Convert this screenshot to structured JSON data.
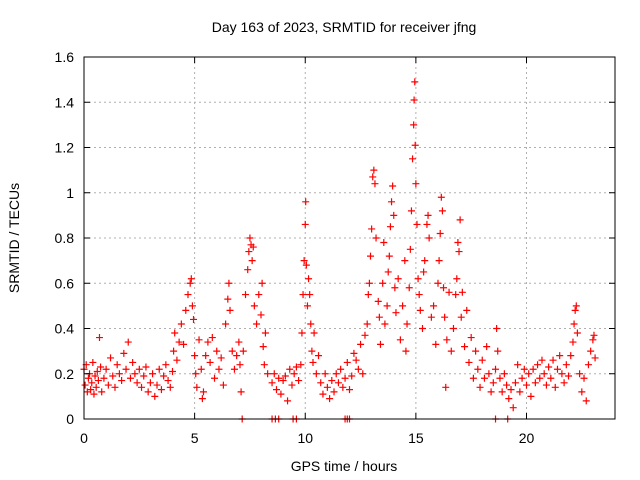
{
  "chart_data": {
    "type": "scatter",
    "title": "Day 163 of 2023, SRMTID for receiver jfng",
    "xlabel": "GPS time / hours",
    "ylabel": "SRMTID / TECUs",
    "xlim": [
      0,
      24
    ],
    "ylim": [
      0,
      1.6
    ],
    "xticks": [
      0,
      5,
      10,
      15,
      20
    ],
    "xtick_labels": [
      "0",
      "5",
      "10",
      "15",
      "20"
    ],
    "yticks": [
      0,
      0.2,
      0.4,
      0.6,
      0.8,
      1,
      1.2,
      1.4,
      1.6
    ],
    "ytick_labels": [
      "0",
      "0.2",
      "0.4",
      "0.6",
      "0.8",
      "1",
      "1.2",
      "1.4",
      "1.6"
    ],
    "grid": true,
    "marker": "+",
    "color": "#ff0000",
    "series": [
      {
        "name": "SRMTID",
        "points": [
          [
            0.0,
            0.22
          ],
          [
            0.05,
            0.15
          ],
          [
            0.1,
            0.24
          ],
          [
            0.15,
            0.12
          ],
          [
            0.2,
            0.18
          ],
          [
            0.25,
            0.2
          ],
          [
            0.3,
            0.13
          ],
          [
            0.35,
            0.16
          ],
          [
            0.4,
            0.25
          ],
          [
            0.45,
            0.11
          ],
          [
            0.5,
            0.19
          ],
          [
            0.55,
            0.14
          ],
          [
            0.6,
            0.21
          ],
          [
            0.65,
            0.17
          ],
          [
            0.7,
            0.36
          ],
          [
            0.75,
            0.23
          ],
          [
            0.8,
            0.12
          ],
          [
            0.9,
            0.18
          ],
          [
            1.0,
            0.22
          ],
          [
            1.1,
            0.15
          ],
          [
            1.2,
            0.27
          ],
          [
            1.3,
            0.19
          ],
          [
            1.4,
            0.14
          ],
          [
            1.5,
            0.24
          ],
          [
            1.6,
            0.2
          ],
          [
            1.7,
            0.17
          ],
          [
            1.8,
            0.29
          ],
          [
            1.9,
            0.22
          ],
          [
            2.0,
            0.34
          ],
          [
            2.1,
            0.18
          ],
          [
            2.2,
            0.25
          ],
          [
            2.3,
            0.2
          ],
          [
            2.4,
            0.16
          ],
          [
            2.5,
            0.22
          ],
          [
            2.6,
            0.14
          ],
          [
            2.7,
            0.19
          ],
          [
            2.8,
            0.23
          ],
          [
            2.9,
            0.12
          ],
          [
            3.0,
            0.16
          ],
          [
            3.1,
            0.2
          ],
          [
            3.2,
            0.1
          ],
          [
            3.3,
            0.15
          ],
          [
            3.4,
            0.22
          ],
          [
            3.5,
            0.13
          ],
          [
            3.6,
            0.19
          ],
          [
            3.7,
            0.24
          ],
          [
            3.8,
            0.17
          ],
          [
            3.9,
            0.14
          ],
          [
            4.0,
            0.21
          ],
          [
            4.05,
            0.3
          ],
          [
            4.1,
            0.38
          ],
          [
            4.2,
            0.26
          ],
          [
            4.3,
            0.34
          ],
          [
            4.4,
            0.42
          ],
          [
            4.5,
            0.33
          ],
          [
            4.6,
            0.48
          ],
          [
            4.7,
            0.55
          ],
          [
            4.8,
            0.6
          ],
          [
            4.85,
            0.62
          ],
          [
            4.9,
            0.5
          ],
          [
            4.95,
            0.44
          ],
          [
            5.0,
            0.28
          ],
          [
            5.05,
            0.2
          ],
          [
            5.1,
            0.14
          ],
          [
            5.2,
            0.35
          ],
          [
            5.3,
            0.22
          ],
          [
            5.35,
            0.09
          ],
          [
            5.4,
            0.12
          ],
          [
            5.5,
            0.28
          ],
          [
            5.6,
            0.34
          ],
          [
            5.7,
            0.25
          ],
          [
            5.8,
            0.36
          ],
          [
            5.9,
            0.18
          ],
          [
            6.0,
            0.3
          ],
          [
            6.1,
            0.22
          ],
          [
            6.2,
            0.27
          ],
          [
            6.3,
            0.15
          ],
          [
            6.4,
            0.42
          ],
          [
            6.5,
            0.53
          ],
          [
            6.55,
            0.6
          ],
          [
            6.6,
            0.48
          ],
          [
            6.7,
            0.3
          ],
          [
            6.8,
            0.22
          ],
          [
            6.9,
            0.28
          ],
          [
            7.0,
            0.34
          ],
          [
            7.05,
            0.24
          ],
          [
            7.1,
            0.12
          ],
          [
            7.2,
            0.3
          ],
          [
            7.3,
            0.55
          ],
          [
            7.4,
            0.66
          ],
          [
            7.45,
            0.74
          ],
          [
            7.5,
            0.8
          ],
          [
            7.55,
            0.77
          ],
          [
            7.6,
            0.7
          ],
          [
            7.65,
            0.76
          ],
          [
            7.7,
            0.5
          ],
          [
            7.8,
            0.42
          ],
          [
            7.9,
            0.55
          ],
          [
            8.0,
            0.46
          ],
          [
            8.05,
            0.6
          ],
          [
            8.1,
            0.32
          ],
          [
            8.15,
            0.24
          ],
          [
            8.2,
            0.38
          ],
          [
            8.3,
            0.2
          ],
          [
            8.5,
            0.16
          ],
          [
            8.6,
            0.2
          ],
          [
            8.7,
            0.13
          ],
          [
            8.8,
            0.18
          ],
          [
            8.9,
            0.11
          ],
          [
            9.0,
            0.17
          ],
          [
            9.1,
            0.19
          ],
          [
            9.2,
            0.08
          ],
          [
            9.3,
            0.22
          ],
          [
            9.4,
            0.15
          ],
          [
            9.5,
            0.2
          ],
          [
            9.6,
            0.23
          ],
          [
            9.7,
            0.17
          ],
          [
            9.8,
            0.24
          ],
          [
            9.85,
            0.38
          ],
          [
            9.9,
            0.55
          ],
          [
            9.95,
            0.7
          ],
          [
            10.0,
            0.86
          ],
          [
            10.02,
            0.96
          ],
          [
            10.05,
            0.68
          ],
          [
            10.1,
            0.5
          ],
          [
            10.15,
            0.62
          ],
          [
            10.2,
            0.55
          ],
          [
            10.25,
            0.42
          ],
          [
            10.3,
            0.3
          ],
          [
            10.35,
            0.25
          ],
          [
            10.4,
            0.38
          ],
          [
            10.5,
            0.2
          ],
          [
            10.6,
            0.28
          ],
          [
            10.7,
            0.16
          ],
          [
            10.8,
            0.11
          ],
          [
            10.9,
            0.2
          ],
          [
            11.0,
            0.14
          ],
          [
            11.1,
            0.09
          ],
          [
            11.2,
            0.17
          ],
          [
            11.3,
            0.12
          ],
          [
            11.4,
            0.2
          ],
          [
            11.5,
            0.16
          ],
          [
            11.6,
            0.22
          ],
          [
            11.7,
            0.14
          ],
          [
            11.8,
            0.18
          ],
          [
            11.9,
            0.25
          ],
          [
            12.0,
            0.13
          ],
          [
            12.1,
            0.19
          ],
          [
            12.2,
            0.29
          ],
          [
            12.3,
            0.26
          ],
          [
            12.4,
            0.22
          ],
          [
            12.5,
            0.33
          ],
          [
            12.6,
            0.2
          ],
          [
            12.7,
            0.37
          ],
          [
            12.8,
            0.42
          ],
          [
            12.85,
            0.55
          ],
          [
            12.9,
            0.6
          ],
          [
            12.95,
            0.72
          ],
          [
            13.0,
            0.84
          ],
          [
            13.05,
            1.07
          ],
          [
            13.1,
            1.1
          ],
          [
            13.15,
            1.04
          ],
          [
            13.2,
            0.8
          ],
          [
            13.3,
            0.52
          ],
          [
            13.35,
            0.45
          ],
          [
            13.4,
            0.33
          ],
          [
            13.5,
            0.6
          ],
          [
            13.55,
            0.78
          ],
          [
            13.6,
            0.42
          ],
          [
            13.7,
            0.5
          ],
          [
            13.75,
            0.65
          ],
          [
            13.8,
            0.72
          ],
          [
            13.85,
            0.85
          ],
          [
            13.9,
            0.96
          ],
          [
            13.95,
            1.03
          ],
          [
            14.0,
            0.9
          ],
          [
            14.05,
            0.58
          ],
          [
            14.1,
            0.47
          ],
          [
            14.2,
            0.62
          ],
          [
            14.3,
            0.35
          ],
          [
            14.4,
            0.5
          ],
          [
            14.5,
            0.7
          ],
          [
            14.55,
            0.3
          ],
          [
            14.6,
            0.42
          ],
          [
            14.7,
            0.58
          ],
          [
            14.75,
            0.75
          ],
          [
            14.8,
            0.92
          ],
          [
            14.85,
            1.15
          ],
          [
            14.9,
            1.3
          ],
          [
            14.92,
            1.41
          ],
          [
            14.95,
            1.49
          ],
          [
            14.97,
            1.21
          ],
          [
            15.0,
            1.04
          ],
          [
            15.05,
            0.86
          ],
          [
            15.1,
            0.62
          ],
          [
            15.15,
            0.55
          ],
          [
            15.2,
            0.48
          ],
          [
            15.3,
            0.4
          ],
          [
            15.35,
            0.65
          ],
          [
            15.4,
            0.7
          ],
          [
            15.5,
            0.86
          ],
          [
            15.55,
            0.9
          ],
          [
            15.6,
            0.8
          ],
          [
            15.7,
            0.45
          ],
          [
            15.8,
            0.5
          ],
          [
            15.9,
            0.33
          ],
          [
            16.0,
            0.6
          ],
          [
            16.05,
            0.7
          ],
          [
            16.1,
            0.82
          ],
          [
            16.15,
            0.98
          ],
          [
            16.2,
            0.92
          ],
          [
            16.25,
            0.58
          ],
          [
            16.3,
            0.45
          ],
          [
            16.35,
            0.14
          ],
          [
            16.4,
            0.35
          ],
          [
            16.5,
            0.56
          ],
          [
            16.6,
            0.3
          ],
          [
            16.7,
            0.4
          ],
          [
            16.8,
            0.55
          ],
          [
            16.85,
            0.62
          ],
          [
            16.9,
            0.78
          ],
          [
            16.95,
            0.74
          ],
          [
            17.0,
            0.88
          ],
          [
            17.05,
            0.45
          ],
          [
            17.1,
            0.56
          ],
          [
            17.2,
            0.32
          ],
          [
            17.3,
            0.48
          ],
          [
            17.4,
            0.25
          ],
          [
            17.5,
            0.36
          ],
          [
            17.6,
            0.18
          ],
          [
            17.7,
            0.3
          ],
          [
            17.8,
            0.22
          ],
          [
            17.9,
            0.14
          ],
          [
            18.0,
            0.26
          ],
          [
            18.1,
            0.18
          ],
          [
            18.2,
            0.32
          ],
          [
            18.3,
            0.2
          ],
          [
            18.4,
            0.12
          ],
          [
            18.5,
            0.16
          ],
          [
            18.6,
            0.22
          ],
          [
            18.65,
            0.4
          ],
          [
            18.7,
            0.3
          ],
          [
            18.8,
            0.18
          ],
          [
            18.9,
            0.12
          ],
          [
            19.0,
            0.2
          ],
          [
            19.1,
            0.15
          ],
          [
            19.2,
            0.09
          ],
          [
            19.3,
            0.13
          ],
          [
            19.4,
            0.05
          ],
          [
            19.5,
            0.16
          ],
          [
            19.6,
            0.24
          ],
          [
            19.7,
            0.12
          ],
          [
            19.8,
            0.18
          ],
          [
            19.9,
            0.22
          ],
          [
            20.0,
            0.15
          ],
          [
            20.1,
            0.2
          ],
          [
            20.2,
            0.1
          ],
          [
            20.3,
            0.22
          ],
          [
            20.4,
            0.16
          ],
          [
            20.5,
            0.24
          ],
          [
            20.6,
            0.18
          ],
          [
            20.7,
            0.26
          ],
          [
            20.8,
            0.2
          ],
          [
            20.9,
            0.15
          ],
          [
            21.0,
            0.23
          ],
          [
            21.1,
            0.18
          ],
          [
            21.2,
            0.26
          ],
          [
            21.3,
            0.14
          ],
          [
            21.4,
            0.22
          ],
          [
            21.5,
            0.28
          ],
          [
            21.6,
            0.2
          ],
          [
            21.7,
            0.16
          ],
          [
            21.8,
            0.24
          ],
          [
            21.9,
            0.19
          ],
          [
            22.0,
            0.28
          ],
          [
            22.1,
            0.34
          ],
          [
            22.15,
            0.42
          ],
          [
            22.2,
            0.48
          ],
          [
            22.25,
            0.5
          ],
          [
            22.3,
            0.38
          ],
          [
            22.4,
            0.2
          ],
          [
            22.5,
            0.12
          ],
          [
            22.6,
            0.18
          ],
          [
            22.7,
            0.08
          ],
          [
            22.8,
            0.24
          ],
          [
            22.9,
            0.3
          ],
          [
            23.0,
            0.35
          ],
          [
            23.05,
            0.37
          ],
          [
            23.1,
            0.27
          ],
          [
            7.15,
            0.0
          ],
          [
            8.5,
            0.0
          ],
          [
            8.65,
            0.0
          ],
          [
            8.8,
            0.0
          ],
          [
            9.45,
            0.0
          ],
          [
            9.6,
            0.0
          ],
          [
            11.8,
            0.0
          ],
          [
            11.9,
            0.0
          ],
          [
            12.0,
            0.0
          ],
          [
            18.6,
            0.0
          ],
          [
            19.15,
            0.0
          ]
        ]
      }
    ]
  }
}
